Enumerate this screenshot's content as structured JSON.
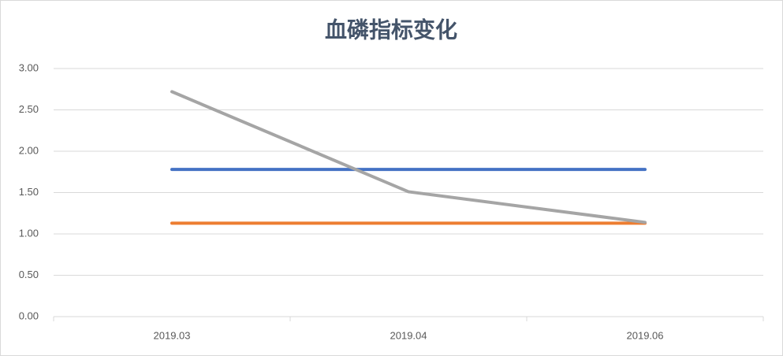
{
  "chart_data": {
    "type": "line",
    "title": "血磷指标变化",
    "categories": [
      "2019.03",
      "2019.04",
      "2019.06"
    ],
    "series": [
      {
        "color": "#4472c4",
        "values": [
          1.78,
          1.78,
          1.78
        ]
      },
      {
        "color": "#ed7d31",
        "values": [
          1.13,
          1.13,
          1.13
        ]
      },
      {
        "color": "#a5a5a5",
        "values": [
          2.72,
          1.51,
          1.14
        ]
      }
    ],
    "ylim": [
      0,
      3
    ],
    "yticks": [
      {
        "value": 0,
        "label": "0.00"
      },
      {
        "value": 0.5,
        "label": "0.50"
      },
      {
        "value": 1,
        "label": "1.00"
      },
      {
        "value": 1.5,
        "label": "1.50"
      },
      {
        "value": 2,
        "label": "2.00"
      },
      {
        "value": 2.5,
        "label": "2.50"
      },
      {
        "value": 3,
        "label": "3.00"
      }
    ],
    "grid": true
  }
}
